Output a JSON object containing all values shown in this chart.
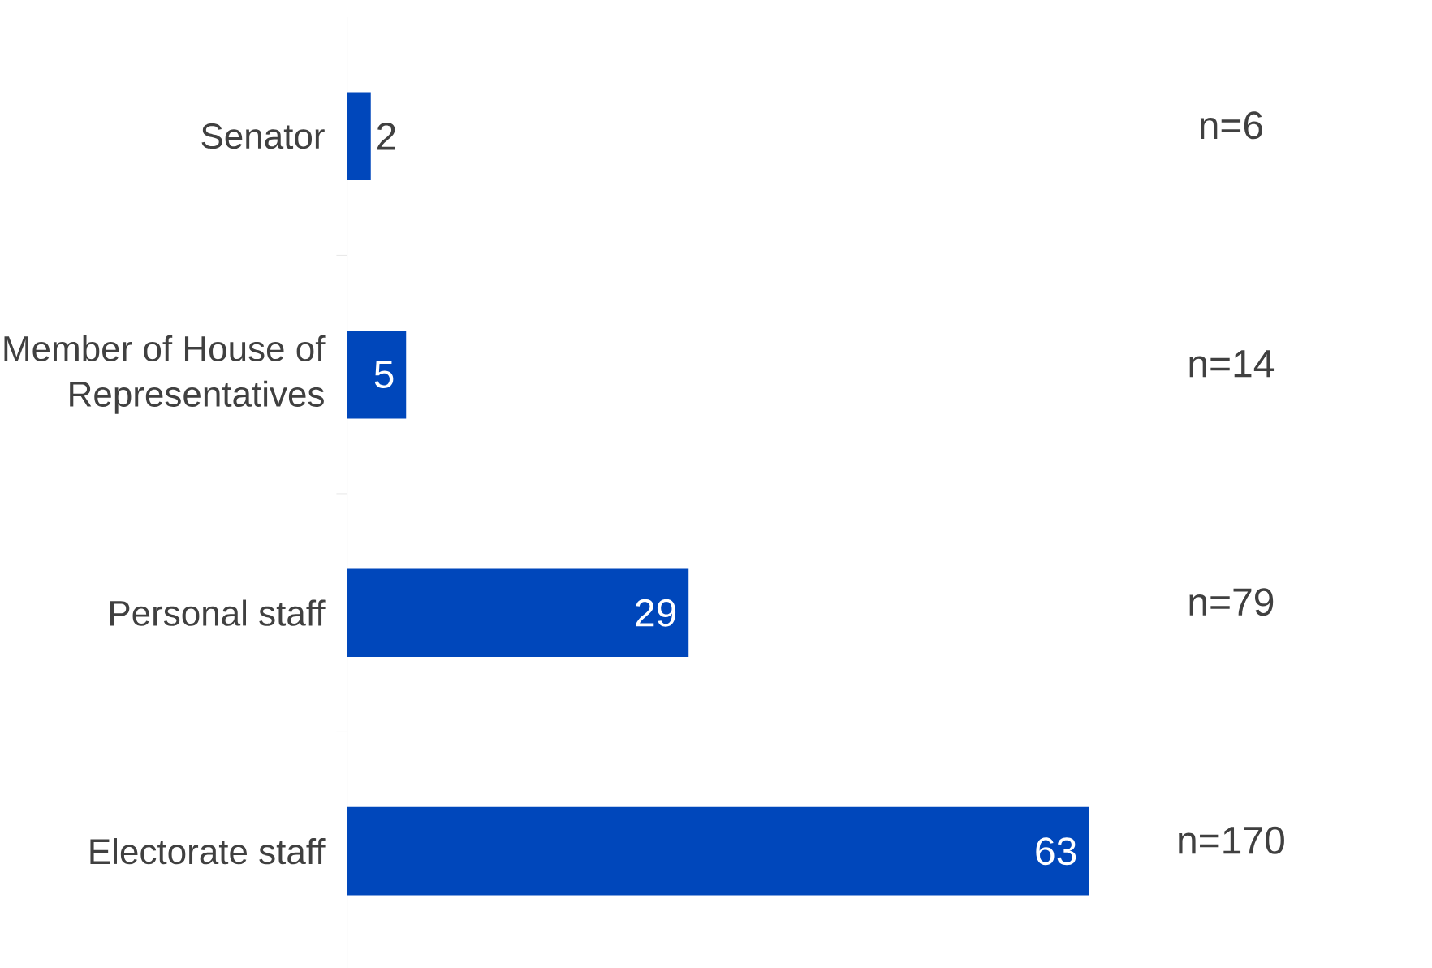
{
  "chart_data": {
    "type": "bar",
    "orientation": "horizontal",
    "categories": [
      "Senator",
      "Member of House of Representatives",
      "Personal staff",
      "Electorate staff"
    ],
    "values": [
      2,
      5,
      29,
      63
    ],
    "color": "#0047bb",
    "data_labels": true,
    "annotations": [
      "n=6",
      "n=14",
      "n=79",
      "n=170"
    ]
  }
}
